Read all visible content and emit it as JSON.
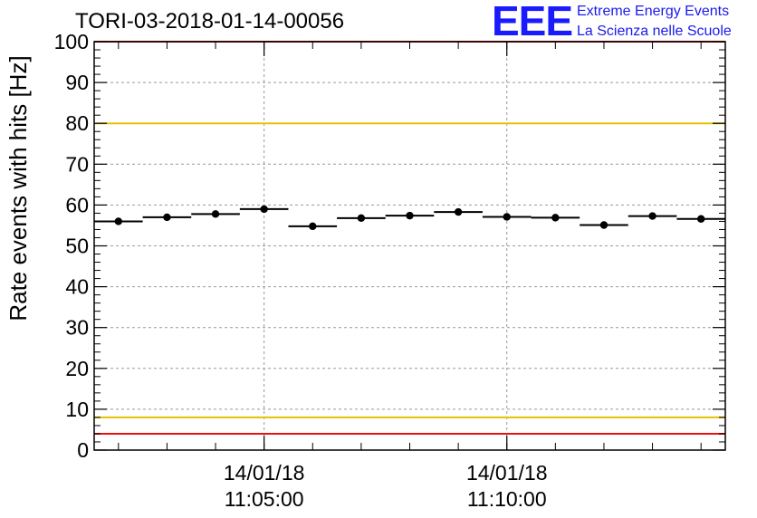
{
  "chart_data": {
    "type": "scatter",
    "title": "TORI-03-2018-01-14-00056",
    "ylabel": "Rate events with hits [Hz]",
    "xlabel": "",
    "ylim": [
      0,
      100
    ],
    "yticks": [
      0,
      10,
      20,
      30,
      40,
      50,
      60,
      70,
      80,
      90,
      100
    ],
    "xlim": [
      -3.5,
      9.5
    ],
    "xticks": [
      {
        "x": 0,
        "date": "14/01/18",
        "time": "11:05:00"
      },
      {
        "x": 5,
        "date": "14/01/18",
        "time": "11:10:00"
      }
    ],
    "bin_width_min": 1,
    "series": [
      {
        "name": "rate",
        "x": [
          -3,
          -2,
          -1,
          0,
          1,
          2,
          3,
          4,
          5,
          6,
          7,
          8,
          9
        ],
        "y": [
          56.0,
          57.0,
          57.8,
          59.0,
          54.8,
          56.8,
          57.4,
          58.3,
          57.1,
          56.9,
          55.1,
          57.3,
          56.6
        ]
      }
    ],
    "reference_lines": [
      {
        "y": 100,
        "color": "#ee1111"
      },
      {
        "y": 80,
        "color": "#e6c000"
      },
      {
        "y": 8,
        "color": "#e6c000"
      },
      {
        "y": 4,
        "color": "#ee1111"
      }
    ],
    "grid": true
  },
  "logo": {
    "mark": "EEE",
    "line1": "Extreme Energy Events",
    "line2": "La Scienza nelle Scuole"
  }
}
